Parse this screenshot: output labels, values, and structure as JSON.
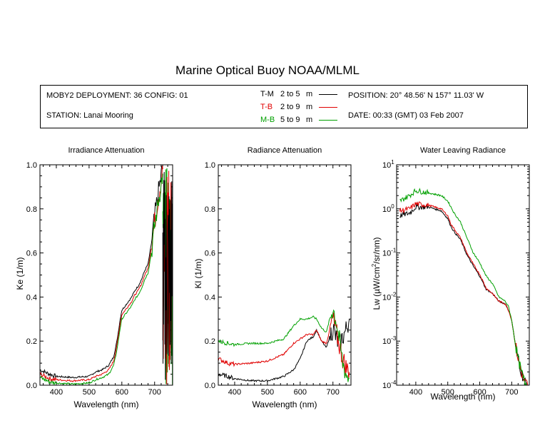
{
  "title": "Marine Optical Buoy NOAA/MLML",
  "info": {
    "deployment": "MOBY2 DEPLOYMENT: 36 CONFIG: 01",
    "station": "STATION: Lanai Mooring",
    "position": "POSITION: 20° 48.56' N   157° 11.03' W",
    "date": "DATE: 00:33 (GMT) 03 Feb 2007"
  },
  "legend": [
    {
      "code": "T-M",
      "range": "2 to 5",
      "unit": "m",
      "color": "#000000"
    },
    {
      "code": "T-B",
      "range": "2 to 9",
      "unit": "m",
      "color": "#e00000"
    },
    {
      "code": "M-B",
      "range": "5 to 9",
      "unit": "m",
      "color": "#00a000"
    }
  ],
  "chart_data": [
    {
      "type": "line",
      "title": "Irradiance Attenuation",
      "xlabel": "Wavelength (nm)",
      "ylabel": "Ke  (1/m)",
      "xlim": [
        350,
        755
      ],
      "ylim": [
        0,
        1.0
      ],
      "xticks": [
        400,
        500,
        600,
        700
      ],
      "yticks": [
        0.0,
        0.2,
        0.4,
        0.6,
        0.8,
        1.0
      ],
      "ytick_labels": [
        "0.0",
        "0.2",
        "0.4",
        "0.6",
        "0.8",
        "1.0"
      ],
      "series": [
        {
          "name": "T-M",
          "color": "#000000",
          "x": [
            350,
            380,
            400,
            450,
            500,
            520,
            540,
            560,
            575,
            585,
            595,
            600,
            610,
            620,
            630,
            640,
            650,
            660,
            670,
            680,
            690,
            700,
            710,
            720,
            725
          ],
          "y": [
            0.07,
            0.05,
            0.04,
            0.035,
            0.04,
            0.06,
            0.07,
            0.09,
            0.13,
            0.2,
            0.3,
            0.34,
            0.36,
            0.38,
            0.4,
            0.43,
            0.45,
            0.48,
            0.52,
            0.55,
            0.64,
            0.76,
            0.86,
            0.95,
            1.0
          ]
        },
        {
          "name": "T-B",
          "color": "#e00000",
          "x": [
            350,
            380,
            400,
            450,
            500,
            520,
            540,
            560,
            575,
            585,
            595,
            600,
            610,
            620,
            630,
            640,
            650,
            660,
            670,
            680,
            690,
            700,
            710,
            720,
            725
          ],
          "y": [
            0.05,
            0.03,
            0.025,
            0.02,
            0.025,
            0.04,
            0.05,
            0.07,
            0.11,
            0.18,
            0.28,
            0.32,
            0.34,
            0.36,
            0.38,
            0.41,
            0.43,
            0.46,
            0.5,
            0.53,
            0.62,
            0.74,
            0.84,
            0.93,
            0.98
          ]
        },
        {
          "name": "M-B",
          "color": "#00a000",
          "x": [
            350,
            380,
            400,
            450,
            500,
            520,
            540,
            560,
            575,
            585,
            595,
            600,
            610,
            620,
            630,
            640,
            650,
            660,
            670,
            680,
            690,
            700,
            710,
            720,
            725
          ],
          "y": [
            0.035,
            0.015,
            0.01,
            0.005,
            0.01,
            0.025,
            0.035,
            0.05,
            0.09,
            0.16,
            0.26,
            0.3,
            0.32,
            0.34,
            0.36,
            0.39,
            0.41,
            0.44,
            0.48,
            0.51,
            0.6,
            0.72,
            0.82,
            0.91,
            0.96
          ]
        }
      ],
      "noise_tail": {
        "x": [
          725,
          755
        ],
        "y_range": [
          0.0,
          1.0
        ]
      }
    },
    {
      "type": "line",
      "title": "Radiance Attenuation",
      "xlabel": "Wavelength (nm)",
      "ylabel": "Kl  (1/m)",
      "xlim": [
        350,
        755
      ],
      "ylim": [
        0,
        1.0
      ],
      "xticks": [
        400,
        500,
        600,
        700
      ],
      "yticks": [
        0.0,
        0.2,
        0.4,
        0.6,
        0.8,
        1.0
      ],
      "ytick_labels": [
        "0.0",
        "0.2",
        "0.4",
        "0.6",
        "0.8",
        "1.0"
      ],
      "series": [
        {
          "name": "T-M",
          "color": "#000000",
          "x": [
            350,
            380,
            400,
            450,
            500,
            550,
            580,
            600,
            620,
            640,
            650,
            665,
            680,
            690,
            700,
            710,
            720,
            730,
            740,
            750
          ],
          "y": [
            0.05,
            0.04,
            0.03,
            0.02,
            0.02,
            0.04,
            0.07,
            0.12,
            0.2,
            0.22,
            0.25,
            0.2,
            0.17,
            0.22,
            0.26,
            0.21,
            0.18,
            0.22,
            0.25,
            0.3
          ]
        },
        {
          "name": "T-B",
          "color": "#e00000",
          "x": [
            350,
            380,
            400,
            450,
            500,
            550,
            580,
            600,
            620,
            640,
            650,
            665,
            680,
            690,
            700,
            710,
            720,
            730,
            740,
            750
          ],
          "y": [
            0.12,
            0.1,
            0.095,
            0.1,
            0.11,
            0.14,
            0.19,
            0.21,
            0.23,
            0.23,
            0.25,
            0.2,
            0.19,
            0.25,
            0.3,
            0.24,
            0.18,
            0.12,
            0.08,
            0.06
          ]
        },
        {
          "name": "M-B",
          "color": "#00a000",
          "x": [
            350,
            380,
            400,
            450,
            500,
            550,
            580,
            600,
            620,
            640,
            650,
            665,
            680,
            690,
            700,
            710,
            720,
            730,
            740,
            750
          ],
          "y": [
            0.2,
            0.19,
            0.185,
            0.19,
            0.19,
            0.21,
            0.27,
            0.3,
            0.3,
            0.31,
            0.3,
            0.26,
            0.24,
            0.3,
            0.35,
            0.29,
            0.2,
            0.1,
            0.05,
            0.03
          ]
        }
      ]
    },
    {
      "type": "line",
      "title": "Water Leaving Radiance",
      "xlabel": "Wavelength (nm)",
      "ylabel": "Lw  (µW/cm²/sr/nm)",
      "xlim": [
        340,
        755
      ],
      "ylim": [
        0.0001,
        10
      ],
      "yscale": "log",
      "xticks": [
        400,
        500,
        600,
        700
      ],
      "ytick_base": "10",
      "ytick_exponents": [
        "1",
        "0",
        "-1",
        "-2",
        "-3",
        "-4"
      ],
      "series": [
        {
          "name": "T-M",
          "color": "#000000",
          "x": [
            350,
            380,
            400,
            440,
            480,
            500,
            510,
            520,
            540,
            560,
            580,
            600,
            620,
            640,
            660,
            680,
            690,
            700,
            710,
            720,
            730,
            740,
            750
          ],
          "y": [
            0.7,
            0.8,
            1.1,
            1.1,
            0.9,
            0.6,
            0.4,
            0.3,
            0.2,
            0.09,
            0.05,
            0.03,
            0.015,
            0.012,
            0.008,
            0.007,
            0.005,
            0.003,
            0.001,
            0.0004,
            0.0002,
            0.00012,
            0.0001
          ]
        },
        {
          "name": "T-B",
          "color": "#e00000",
          "x": [
            350,
            380,
            400,
            440,
            480,
            500,
            510,
            520,
            540,
            560,
            580,
            600,
            620,
            640,
            660,
            680,
            690,
            700,
            710,
            720,
            730,
            740,
            750
          ],
          "y": [
            0.9,
            1.0,
            1.3,
            1.2,
            1.0,
            0.7,
            0.45,
            0.35,
            0.22,
            0.1,
            0.055,
            0.033,
            0.016,
            0.012,
            0.008,
            0.007,
            0.005,
            0.003,
            0.001,
            0.0004,
            0.0002,
            0.00012,
            0.0001
          ]
        },
        {
          "name": "M-B",
          "color": "#00a000",
          "x": [
            350,
            380,
            400,
            440,
            480,
            500,
            510,
            520,
            540,
            560,
            580,
            600,
            620,
            640,
            660,
            680,
            690,
            700,
            710,
            720,
            730,
            740,
            750
          ],
          "y": [
            1.5,
            2.0,
            2.6,
            2.3,
            2.0,
            1.5,
            1.1,
            0.8,
            0.5,
            0.22,
            0.1,
            0.06,
            0.03,
            0.02,
            0.01,
            0.008,
            0.006,
            0.003,
            0.001,
            0.0004,
            0.0002,
            0.00012,
            0.0001
          ]
        }
      ]
    }
  ]
}
